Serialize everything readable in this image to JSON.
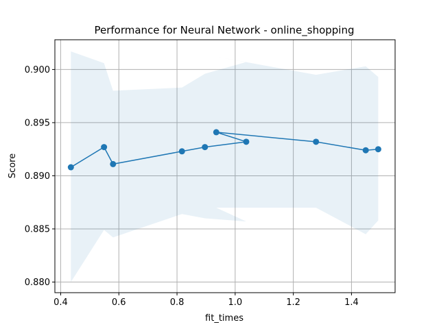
{
  "chart_data": {
    "type": "line",
    "title": "Performance for Neural Network - online_shopping",
    "xlabel": "fit_times",
    "ylabel": "Score",
    "xlim": [
      0.38,
      1.55
    ],
    "ylim": [
      0.879,
      0.9028
    ],
    "xticks": [
      0.4,
      0.6,
      0.8,
      1.0,
      1.2,
      1.4
    ],
    "xtick_labels": [
      "0.4",
      "0.6",
      "0.8",
      "1.0",
      "1.2",
      "1.4"
    ],
    "yticks": [
      0.88,
      0.885,
      0.89,
      0.895,
      0.9
    ],
    "ytick_labels": [
      "0.880",
      "0.885",
      "0.890",
      "0.895",
      "0.900"
    ],
    "grid": true,
    "legend": "none",
    "series": [
      {
        "color": "#1f77b4",
        "band_color": "#1f77b4",
        "band_opacity": 0.1,
        "points": [
          {
            "x": 0.435,
            "y": 0.8908,
            "lower": 0.88,
            "upper": 0.9017
          },
          {
            "x": 0.549,
            "y": 0.8927,
            "lower": 0.8849,
            "upper": 0.9006
          },
          {
            "x": 0.58,
            "y": 0.8911,
            "lower": 0.8842,
            "upper": 0.898
          },
          {
            "x": 0.817,
            "y": 0.8923,
            "lower": 0.8864,
            "upper": 0.8983
          },
          {
            "x": 0.896,
            "y": 0.8927,
            "lower": 0.886,
            "upper": 0.8996
          },
          {
            "x": 1.038,
            "y": 0.8932,
            "lower": 0.8857,
            "upper": 0.9007
          },
          {
            "x": 0.935,
            "y": 0.8941,
            "lower": 0.887,
            "upper": 0.9012
          },
          {
            "x": 1.278,
            "y": 0.8932,
            "lower": 0.887,
            "upper": 0.8995
          },
          {
            "x": 1.449,
            "y": 0.8924,
            "lower": 0.8845,
            "upper": 0.9003
          },
          {
            "x": 1.492,
            "y": 0.8925,
            "lower": 0.8858,
            "upper": 0.8993
          }
        ]
      }
    ]
  }
}
